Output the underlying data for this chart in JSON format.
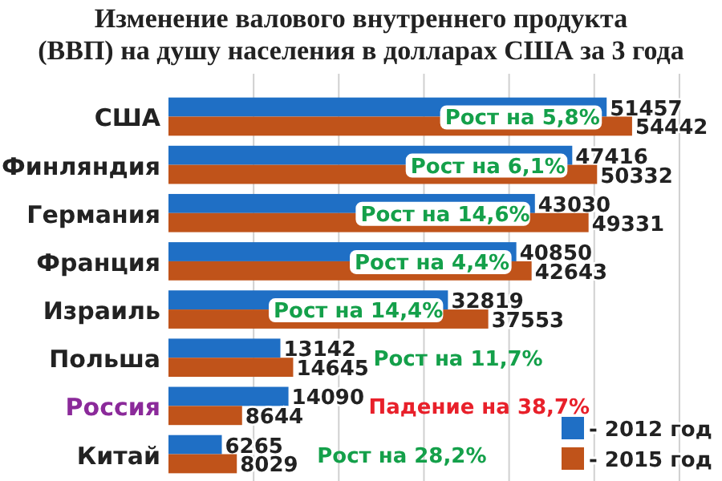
{
  "chart_data": {
    "type": "bar",
    "orientation": "horizontal",
    "title": "Изменение валового внутреннего продукта\n(ВВП) на душу населения в долларах США за 3 года",
    "categories": [
      "США",
      "Финляндия",
      "Германия",
      "Франция",
      "Израиль",
      "Польша",
      "Россия",
      "Китай"
    ],
    "series": [
      {
        "name": "- 2012 год",
        "color": "#1f6fc5",
        "values": [
          51457,
          47416,
          43030,
          40850,
          32819,
          13142,
          14090,
          6265
        ]
      },
      {
        "name": "- 2015 год",
        "color": "#c0531a",
        "values": [
          54442,
          50332,
          49331,
          42643,
          37553,
          14645,
          8644,
          8029
        ]
      }
    ],
    "xlim": [
      0,
      65000
    ],
    "xticks": [
      {
        "value": 10000,
        "label": null
      },
      {
        "value": 20000,
        "label": null
      },
      {
        "value": 30000,
        "label": null
      },
      {
        "value": 40000,
        "label": null
      },
      {
        "value": 50000,
        "label": null
      },
      {
        "value": 60000,
        "label": null
      }
    ],
    "grid": "x",
    "data_labels": true,
    "legend": "bottom right",
    "tick_labels": "y",
    "annotations": [
      "Рост на 5,8%",
      "Рост на 6,1%",
      "Рост на 14,6%",
      "Рост на 4,4%",
      "Рост на 14,4%",
      "Рост на 11,7%",
      "Падение на 38,7%",
      "Рост на 28,2%"
    ]
  }
}
